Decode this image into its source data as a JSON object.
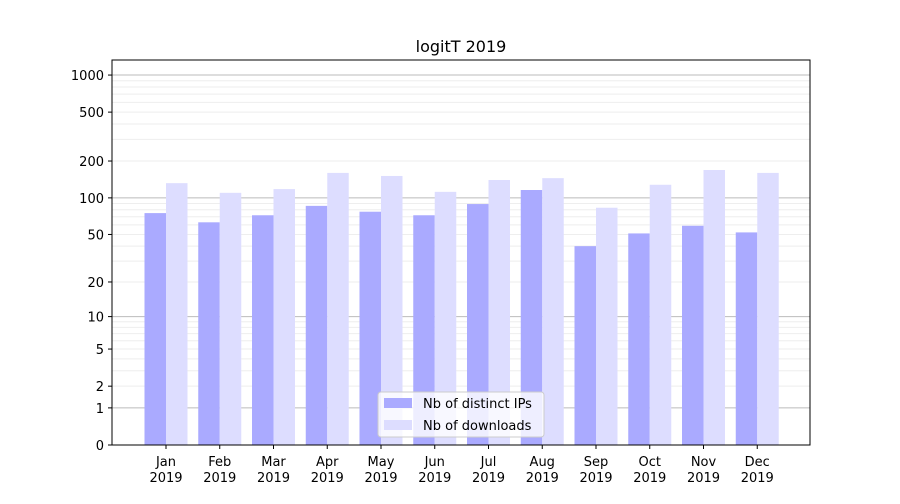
{
  "chart_data": {
    "type": "bar",
    "title": "logitT 2019",
    "xlabel": "",
    "ylabel": "",
    "y_scale": "log(1+y)",
    "ylim": [
      0,
      1325
    ],
    "yticks": [
      0,
      1,
      2,
      5,
      10,
      20,
      50,
      100,
      200,
      500,
      1000
    ],
    "grid": true,
    "legend_position": "lower center",
    "categories": [
      "Jan\n2019",
      "Feb\n2019",
      "Mar\n2019",
      "Apr\n2019",
      "May\n2019",
      "Jun\n2019",
      "Jul\n2019",
      "Aug\n2019",
      "Sep\n2019",
      "Oct\n2019",
      "Nov\n2019",
      "Dec\n2019"
    ],
    "series": [
      {
        "name": "Nb of distinct IPs",
        "color": "#aaaaff",
        "values": [
          75,
          63,
          72,
          86,
          77,
          72,
          89,
          116,
          40,
          51,
          59,
          52
        ]
      },
      {
        "name": "Nb of downloads",
        "color": "#ddddff",
        "values": [
          132,
          110,
          118,
          160,
          151,
          112,
          140,
          145,
          83,
          128,
          169,
          160
        ]
      }
    ]
  }
}
